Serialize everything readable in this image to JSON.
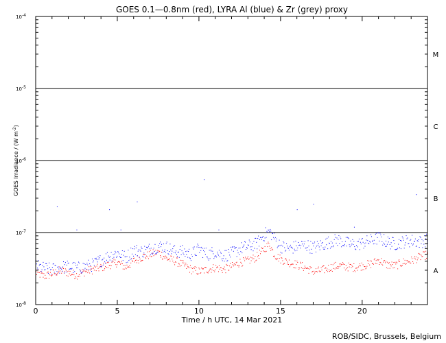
{
  "chart_data": {
    "type": "scatter",
    "title": "GOES 0.1—0.8nm (red), LYRA Al (blue) & Zr (grey) proxy",
    "xlabel": "Time / h UTC, 14 Mar 2021",
    "ylabel_base": "GOES Irradiance / (W m",
    "ylabel_exp": "-2",
    "ylabel_close": ")",
    "yscale": "log",
    "xlim": [
      0,
      24
    ],
    "ylim": [
      1e-08,
      0.0001
    ],
    "x_ticks": [
      "0",
      "5",
      "10",
      "15",
      "20"
    ],
    "x_tick_values": [
      0,
      5,
      10,
      15,
      20
    ],
    "y_ticks": [
      {
        "base": "10",
        "exp": "-4",
        "value": 0.0001
      },
      {
        "base": "10",
        "exp": "-5",
        "value": 1e-05
      },
      {
        "base": "10",
        "exp": "-6",
        "value": 1e-06
      },
      {
        "base": "10",
        "exp": "-7",
        "value": 1e-07
      },
      {
        "base": "10",
        "exp": "-8",
        "value": 1e-08
      }
    ],
    "flare_classes": [
      {
        "label": "M",
        "level": 3e-05
      },
      {
        "label": "C",
        "level": 3e-06
      },
      {
        "label": "B",
        "level": 3e-07
      },
      {
        "label": "A",
        "level": 3e-08
      }
    ],
    "threshold_lines": [
      1e-05,
      1e-06,
      1e-07
    ],
    "series": [
      {
        "name": "GOES 0.1—0.8nm",
        "color": "#ff0000",
        "x": [
          0,
          0.5,
          1,
          1.5,
          2,
          2.5,
          3,
          3.5,
          4,
          4.5,
          5,
          5.5,
          6,
          6.5,
          7,
          7.5,
          8,
          8.5,
          9,
          9.5,
          10,
          10.5,
          11,
          11.5,
          12,
          12.5,
          13,
          13.5,
          14,
          14.3,
          14.6,
          15,
          15.5,
          16,
          16.5,
          17,
          17.5,
          18,
          18.5,
          19,
          19.5,
          20,
          20.5,
          21,
          21.5,
          22,
          22.5,
          23,
          23.5,
          24
        ],
        "y": [
          2.8e-08,
          2.5e-08,
          2.7e-08,
          3e-08,
          2.8e-08,
          2.6e-08,
          2.9e-08,
          3.1e-08,
          3.3e-08,
          3.6e-08,
          3.9e-08,
          3.3e-08,
          4.1e-08,
          4.6e-08,
          5e-08,
          5.4e-08,
          4.4e-08,
          4.1e-08,
          3.6e-08,
          3.1e-08,
          2.9e-08,
          3.1e-08,
          3.3e-08,
          3.1e-08,
          3.4e-08,
          3.9e-08,
          4.1e-08,
          4.6e-08,
          6e-08,
          7e-08,
          5e-08,
          4.3e-08,
          3.9e-08,
          3.6e-08,
          3.3e-08,
          2.9e-08,
          3e-08,
          3.3e-08,
          3.5e-08,
          3.4e-08,
          3.3e-08,
          3.5e-08,
          3.7e-08,
          4.2e-08,
          3.6e-08,
          3.5e-08,
          3.9e-08,
          4.1e-08,
          4.6e-08,
          5e-08
        ]
      },
      {
        "name": "LYRA Al",
        "color": "#0000ff",
        "x": [
          0,
          0.5,
          1,
          1.5,
          2,
          2.5,
          3,
          3.5,
          4,
          4.5,
          5,
          5.5,
          6,
          6.5,
          7,
          7.5,
          8,
          8.5,
          9,
          9.5,
          10,
          10.5,
          11,
          11.5,
          12,
          12.5,
          13,
          13.5,
          14,
          14.3,
          14.6,
          15,
          15.5,
          16,
          16.5,
          17,
          17.5,
          18,
          18.5,
          19,
          19.5,
          20,
          20.5,
          21,
          21.5,
          22,
          22.5,
          23,
          23.5,
          24
        ],
        "y": [
          3.5e-08,
          3.2e-08,
          3.1e-08,
          3.3e-08,
          3.4e-08,
          3.2e-08,
          3.4e-08,
          3.6e-08,
          4.2e-08,
          4.8e-08,
          5.3e-08,
          4.5e-08,
          5.8e-08,
          5.5e-08,
          6e-08,
          6.5e-08,
          6.3e-08,
          5.5e-08,
          5.5e-08,
          5e-08,
          6e-08,
          5e-08,
          5.5e-08,
          4.8e-08,
          5.2e-08,
          6e-08,
          6.5e-08,
          7e-08,
          9.5e-08,
          1.05e-07,
          8.5e-08,
          6.5e-08,
          6e-08,
          6.5e-08,
          6.8e-08,
          6.2e-08,
          6.8e-08,
          7.5e-08,
          8e-08,
          7.2e-08,
          6.8e-08,
          7.2e-08,
          7.8e-08,
          8.5e-08,
          7.5e-08,
          7e-08,
          7.5e-08,
          7.8e-08,
          7.5e-08,
          8e-08
        ]
      }
    ],
    "isolated_blue_points": [
      {
        "x": 1.3,
        "y": 2.3e-07
      },
      {
        "x": 4.5,
        "y": 2.1e-07
      },
      {
        "x": 6.2,
        "y": 2.7e-07
      },
      {
        "x": 10.3,
        "y": 5.5e-07
      },
      {
        "x": 16.0,
        "y": 2.1e-07
      },
      {
        "x": 17.0,
        "y": 2.5e-07
      },
      {
        "x": 23.3,
        "y": 3.4e-07
      },
      {
        "x": 2.5,
        "y": 1.1e-07
      },
      {
        "x": 5.2,
        "y": 1.1e-07
      },
      {
        "x": 11.2,
        "y": 1.1e-07
      },
      {
        "x": 19.5,
        "y": 1.2e-07
      }
    ],
    "credit": "ROB/SIDC, Brussels, Belgium"
  }
}
